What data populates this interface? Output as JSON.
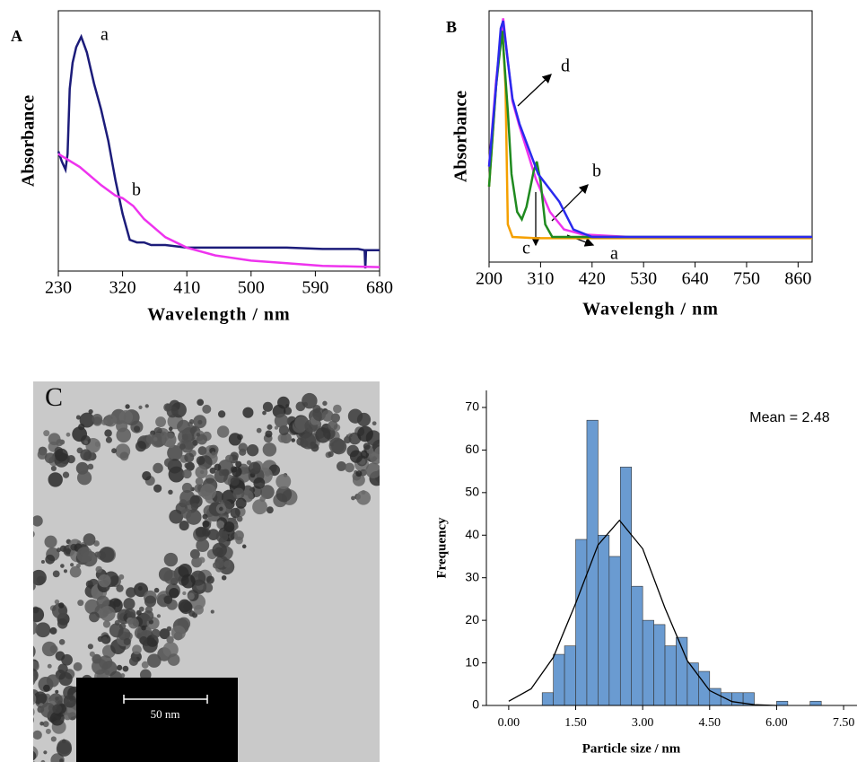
{
  "chart_data": [
    {
      "type": "line",
      "label": "A",
      "x_label": "Wavelength / nm",
      "y_label": "Absorbance",
      "xlim": [
        230,
        680
      ],
      "ylim": [
        0,
        1
      ],
      "xticks": [
        230,
        320,
        410,
        500,
        590,
        680
      ],
      "series": [
        {
          "name": "a",
          "color": "#1c1c7a",
          "x": [
            230,
            235,
            240,
            243,
            246,
            250,
            255,
            262,
            270,
            280,
            290,
            300,
            310,
            320,
            330,
            340,
            350,
            360,
            380,
            410,
            450,
            500,
            550,
            600,
            650,
            659,
            660,
            661,
            680
          ],
          "values": [
            0.46,
            0.42,
            0.39,
            0.45,
            0.7,
            0.8,
            0.86,
            0.9,
            0.84,
            0.72,
            0.62,
            0.5,
            0.35,
            0.22,
            0.12,
            0.11,
            0.11,
            0.1,
            0.1,
            0.09,
            0.09,
            0.09,
            0.09,
            0.085,
            0.085,
            0.08,
            0.01,
            0.08,
            0.08
          ]
        },
        {
          "name": "b",
          "color": "#ee33ee",
          "x": [
            230,
            260,
            290,
            310,
            320,
            335,
            350,
            380,
            410,
            450,
            500,
            550,
            600,
            680
          ],
          "values": [
            0.45,
            0.4,
            0.33,
            0.29,
            0.28,
            0.25,
            0.2,
            0.13,
            0.09,
            0.06,
            0.04,
            0.03,
            0.02,
            0.015
          ]
        }
      ]
    },
    {
      "type": "line",
      "label": "B",
      "x_label": "Wavelengh / nm",
      "y_label": "Absorbance",
      "xlim": [
        200,
        890
      ],
      "ylim": [
        0,
        1
      ],
      "xticks": [
        200,
        310,
        420,
        530,
        640,
        750,
        860
      ],
      "series": [
        {
          "name": "a",
          "color": "#f5a000",
          "x": [
            200,
            215,
            228,
            235,
            240,
            250,
            300,
            890
          ],
          "values": [
            0.3,
            0.7,
            0.95,
            0.7,
            0.15,
            0.1,
            0.095,
            0.095
          ]
        },
        {
          "name": "b",
          "color": "#ee33ee",
          "x": [
            200,
            215,
            230,
            240,
            250,
            265,
            300,
            330,
            360,
            400,
            500,
            890
          ],
          "values": [
            0.38,
            0.72,
            0.97,
            0.8,
            0.64,
            0.54,
            0.33,
            0.2,
            0.13,
            0.11,
            0.1,
            0.1
          ]
        },
        {
          "name": "c",
          "color": "#1f8a1f",
          "x": [
            200,
            215,
            228,
            240,
            248,
            260,
            270,
            280,
            295,
            302,
            310,
            320,
            335,
            890
          ],
          "values": [
            0.3,
            0.7,
            0.92,
            0.6,
            0.35,
            0.2,
            0.17,
            0.22,
            0.36,
            0.4,
            0.32,
            0.15,
            0.1,
            0.1
          ]
        },
        {
          "name": "d",
          "color": "#2a2aee",
          "x": [
            200,
            215,
            225,
            230,
            240,
            250,
            265,
            305,
            350,
            380,
            420,
            500,
            890
          ],
          "values": [
            0.38,
            0.7,
            0.93,
            0.96,
            0.8,
            0.65,
            0.55,
            0.35,
            0.24,
            0.13,
            0.1,
            0.1,
            0.1
          ]
        }
      ]
    },
    {
      "type": "histogram",
      "x_label": "Particle size / nm",
      "y_label": "Frequency",
      "annotation": "Mean = 2.48",
      "xlim": [
        -0.5,
        7.8
      ],
      "ylim": [
        0,
        74
      ],
      "xticks": [
        {
          "value": 0,
          "label": "0.00"
        },
        {
          "value": 1.5,
          "label": "1.50"
        },
        {
          "value": 3,
          "label": "3.00"
        },
        {
          "value": 4.5,
          "label": "4.50"
        },
        {
          "value": 6,
          "label": "6.00"
        },
        {
          "value": 7.5,
          "label": "7.50"
        }
      ],
      "yticks": [
        0,
        10,
        20,
        30,
        40,
        50,
        60,
        70
      ],
      "color": "#6a9bd1",
      "bins": [
        0.75,
        1.0,
        1.25,
        1.5,
        1.75,
        2.0,
        2.25,
        2.5,
        2.75,
        3.0,
        3.25,
        3.5,
        3.75,
        4.0,
        4.25,
        4.5,
        4.75,
        5.0,
        5.25,
        5.5,
        5.75,
        6.0,
        6.25,
        6.5,
        6.75,
        7.0
      ],
      "counts": [
        3,
        12,
        14,
        39,
        67,
        40,
        35,
        56,
        28,
        20,
        19,
        14,
        16,
        10,
        8,
        4,
        3,
        3,
        3,
        0,
        0,
        1,
        0,
        0,
        1
      ],
      "fit": {
        "color": "#000000",
        "x": [
          0,
          0.5,
          1.0,
          1.5,
          2.0,
          2.48,
          3.0,
          3.5,
          4.0,
          4.5,
          5.0,
          5.5,
          6.0
        ],
        "values": [
          1.0,
          3.9,
          11.3,
          24.0,
          37.7,
          43.5,
          36.8,
          22.9,
          10.5,
          3.5,
          0.9,
          0.2,
          0.0
        ]
      }
    }
  ],
  "micrograph": {
    "label": "C",
    "scale_bar": "50 nm"
  }
}
